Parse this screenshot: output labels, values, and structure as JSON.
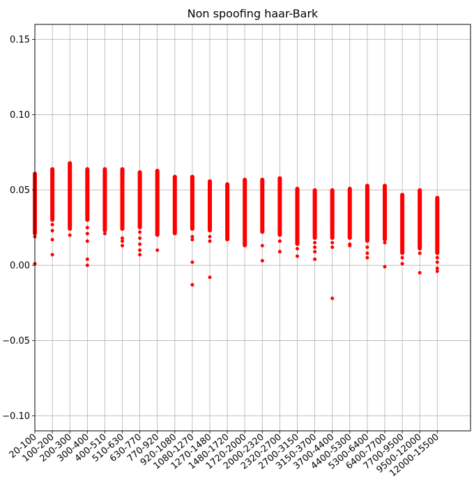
{
  "chart_data": {
    "type": "scatter",
    "title": "Non spoofing haar-Bark",
    "xlabel": "",
    "ylabel": "",
    "ylim": [
      -0.11,
      0.16
    ],
    "y_ticks": [
      0.15,
      0.1,
      0.05,
      0.0,
      -0.05,
      -0.1
    ],
    "y_tick_labels": [
      "0.15",
      "0.10",
      "0.05",
      "0.00",
      "−0.05",
      "−0.10"
    ],
    "grid": true,
    "marker_color": "#ff0000",
    "categories": [
      "20-100",
      "100-200",
      "200-300",
      "300-400",
      "400-510",
      "510-630",
      "630-770",
      "770-920",
      "920-1080",
      "1080-1270",
      "1270-1480",
      "1480-1720",
      "1720-2000",
      "2000-2320",
      "2320-2700",
      "2700-3150",
      "3150-3700",
      "3700-4400",
      "4400-5300",
      "5300-6400",
      "6400-7700",
      "7700-9500",
      "9500-12000",
      "12000-15500"
    ],
    "series": [
      {
        "points_by_category": [
          {
            "band": [
              0.021,
              0.061
            ],
            "outliers": [
              0.019,
              0.001
            ]
          },
          {
            "band": [
              0.03,
              0.064
            ],
            "outliers": [
              0.027,
              0.023,
              0.017,
              0.007
            ]
          },
          {
            "band": [
              0.024,
              0.068
            ],
            "outliers": [
              0.02
            ]
          },
          {
            "band": [
              0.03,
              0.064
            ],
            "outliers": [
              0.025,
              0.021,
              0.016,
              0.004,
              0.0
            ]
          },
          {
            "band": [
              0.023,
              0.064
            ],
            "outliers": [
              0.021
            ]
          },
          {
            "band": [
              0.024,
              0.064
            ],
            "outliers": [
              0.018,
              0.016,
              0.013
            ]
          },
          {
            "band": [
              0.025,
              0.062
            ],
            "outliers": [
              0.022,
              0.018,
              0.014,
              0.01,
              0.007
            ]
          },
          {
            "band": [
              0.02,
              0.063
            ],
            "outliers": [
              0.01
            ]
          },
          {
            "band": [
              0.021,
              0.059
            ],
            "outliers": []
          },
          {
            "band": [
              0.024,
              0.059
            ],
            "outliers": [
              0.019,
              0.017,
              0.002,
              -0.013
            ]
          },
          {
            "band": [
              0.023,
              0.056
            ],
            "outliers": [
              0.019,
              0.016,
              -0.008
            ]
          },
          {
            "band": [
              0.017,
              0.054
            ],
            "outliers": []
          },
          {
            "band": [
              0.013,
              0.057
            ],
            "outliers": []
          },
          {
            "band": [
              0.022,
              0.057
            ],
            "outliers": [
              0.013,
              0.003
            ]
          },
          {
            "band": [
              0.02,
              0.058
            ],
            "outliers": [
              0.016,
              0.009
            ]
          },
          {
            "band": [
              0.014,
              0.051
            ],
            "outliers": [
              0.011,
              0.006
            ]
          },
          {
            "band": [
              0.018,
              0.05
            ],
            "outliers": [
              0.015,
              0.012,
              0.009,
              0.004
            ]
          },
          {
            "band": [
              0.018,
              0.05
            ],
            "outliers": [
              0.015,
              0.012,
              -0.022
            ]
          },
          {
            "band": [
              0.018,
              0.051
            ],
            "outliers": [
              0.014,
              0.013
            ]
          },
          {
            "band": [
              0.016,
              0.053
            ],
            "outliers": [
              0.012,
              0.008,
              0.005
            ]
          },
          {
            "band": [
              0.017,
              0.053
            ],
            "outliers": [
              0.015,
              -0.001
            ]
          },
          {
            "band": [
              0.008,
              0.047
            ],
            "outliers": [
              0.005,
              0.001
            ]
          },
          {
            "band": [
              0.011,
              0.05
            ],
            "outliers": [
              0.008,
              -0.005
            ]
          },
          {
            "band": [
              0.008,
              0.045
            ],
            "outliers": [
              0.005,
              0.002,
              -0.002,
              -0.004
            ]
          }
        ]
      }
    ]
  }
}
